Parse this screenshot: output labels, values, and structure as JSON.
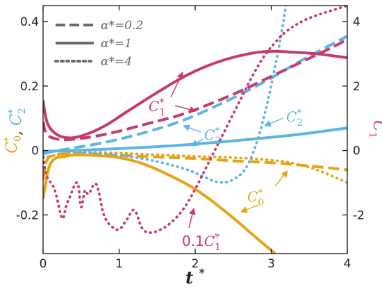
{
  "colors": {
    "orange": "#E8A317",
    "blue": "#5BB5E5",
    "pink": "#C8396E",
    "legend_gray": "#6a6a6a",
    "axis": "#000000"
  },
  "chart_data": {
    "type": "line",
    "xlabel": "t*",
    "ylabel_left_parts": [
      "C",
      "0",
      "*",
      ", ",
      "C",
      "2",
      "*"
    ],
    "ylabel_right": "C1*",
    "xlim": [
      0,
      4
    ],
    "ylim_left": [
      -0.32,
      0.45
    ],
    "ylim_right": [
      -3.2,
      4.5
    ],
    "x_ticks": [
      0,
      1,
      2,
      3,
      4
    ],
    "x_tick_labels": [
      "0",
      "1",
      "2",
      "3",
      "4"
    ],
    "y_left_ticks": [
      -0.2,
      0,
      0.2,
      0.4
    ],
    "y_left_tick_labels": [
      "-0.2",
      "0",
      "0.2",
      "0.4"
    ],
    "y_right_ticks": [
      -2,
      0,
      2,
      4
    ],
    "y_right_tick_labels": [
      "-2",
      "0",
      "2",
      "4"
    ],
    "grid": false,
    "legend": {
      "placement": "top-left",
      "entries": [
        {
          "label": "α*=0.2",
          "style": "dashed"
        },
        {
          "label": "α*=1",
          "style": "solid"
        },
        {
          "label": "α*=4",
          "style": "dotted"
        }
      ]
    },
    "series": [
      {
        "quantity": "C0*",
        "alpha": "1",
        "style": "solid",
        "color": "orange",
        "axis": "left",
        "x": [
          0,
          0.1,
          0.3,
          0.5,
          0.8,
          1.0,
          1.3,
          1.6,
          2.0,
          2.4,
          2.8,
          3.05
        ],
        "y": [
          -0.15,
          -0.04,
          -0.018,
          -0.014,
          -0.017,
          -0.022,
          -0.04,
          -0.07,
          -0.12,
          -0.19,
          -0.27,
          -0.32
        ]
      },
      {
        "quantity": "C0*",
        "alpha": "0.2",
        "style": "dashed",
        "color": "orange",
        "axis": "left",
        "x": [
          0,
          0.05,
          0.15,
          0.3,
          0.6,
          1.0,
          1.5,
          2.0,
          2.5,
          3.0,
          3.5,
          4.0
        ],
        "y": [
          -0.09,
          -0.03,
          -0.015,
          -0.01,
          -0.01,
          -0.015,
          -0.02,
          -0.025,
          -0.032,
          -0.038,
          -0.048,
          -0.06
        ]
      },
      {
        "quantity": "C0*",
        "alpha": "4",
        "style": "dotted",
        "color": "orange",
        "axis": "left",
        "x": [
          0,
          0.15,
          0.3,
          0.6,
          1.0,
          1.5,
          2.0,
          2.5,
          3.0,
          3.3,
          3.6,
          4.0
        ],
        "y": [
          -0.02,
          -0.015,
          -0.008,
          -0.005,
          -0.008,
          -0.013,
          -0.018,
          -0.022,
          -0.03,
          -0.04,
          -0.06,
          -0.1
        ]
      },
      {
        "quantity": "C2*",
        "alpha": "1",
        "style": "solid",
        "color": "blue",
        "axis": "left",
        "x": [
          0,
          0.1,
          0.3,
          0.6,
          1.0,
          1.5,
          2.0,
          2.5,
          3.0,
          3.5,
          4.0
        ],
        "y": [
          -0.005,
          -0.002,
          -0.001,
          0.002,
          0.006,
          0.012,
          0.02,
          0.03,
          0.041,
          0.054,
          0.07
        ]
      },
      {
        "quantity": "C2*",
        "alpha": "0.2",
        "style": "dashed",
        "color": "blue",
        "axis": "left",
        "x": [
          0,
          0.2,
          0.4,
          0.7,
          1.0,
          1.4,
          1.8,
          2.2,
          2.6,
          3.0,
          3.4,
          3.8,
          4.0
        ],
        "y": [
          -0.01,
          0.0,
          0.008,
          0.02,
          0.035,
          0.06,
          0.09,
          0.13,
          0.175,
          0.225,
          0.28,
          0.33,
          0.355
        ]
      },
      {
        "quantity": "C2*",
        "alpha": "4",
        "style": "dotted",
        "color": "blue",
        "axis": "left",
        "x": [
          0,
          0.2,
          0.4,
          0.7,
          1.0,
          1.3,
          1.6,
          1.9,
          2.1,
          2.3,
          2.5,
          2.7,
          2.9,
          3.1,
          3.2
        ],
        "y": [
          0.0,
          -0.002,
          -0.004,
          -0.008,
          -0.015,
          -0.025,
          -0.04,
          -0.06,
          -0.08,
          -0.098,
          -0.09,
          -0.04,
          0.1,
          0.32,
          0.46
        ]
      },
      {
        "quantity": "C1*",
        "alpha": "1",
        "style": "solid",
        "color": "pink",
        "axis": "right",
        "x": [
          0,
          0.05,
          0.15,
          0.3,
          0.5,
          0.8,
          1.1,
          1.5,
          1.9,
          2.3,
          2.7,
          3.0,
          3.3,
          3.6,
          4.0
        ],
        "y": [
          1.55,
          0.9,
          0.55,
          0.4,
          0.45,
          0.75,
          1.2,
          1.8,
          2.35,
          2.75,
          3.0,
          3.08,
          3.05,
          3.0,
          2.88
        ]
      },
      {
        "quantity": "C1*",
        "alpha": "0.2",
        "style": "dashed",
        "color": "pink",
        "axis": "right",
        "x": [
          0,
          0.05,
          0.2,
          0.4,
          0.7,
          1.0,
          1.4,
          1.8,
          2.2,
          2.6,
          3.0,
          3.4,
          3.8,
          4.0
        ],
        "y": [
          0.9,
          0.5,
          0.35,
          0.35,
          0.45,
          0.6,
          0.85,
          1.1,
          1.45,
          1.85,
          2.3,
          2.75,
          3.2,
          3.45
        ]
      },
      {
        "quantity": "0.1·C1*",
        "alpha": "4",
        "style": "dotted",
        "color": "pink",
        "axis": "right",
        "x": [
          0,
          0.05,
          0.15,
          0.25,
          0.3,
          0.35,
          0.45,
          0.5,
          0.55,
          0.6,
          0.7,
          0.8,
          0.9,
          1.0,
          1.1,
          1.2,
          1.3,
          1.4,
          1.55,
          1.7,
          1.85,
          2.0,
          2.15,
          2.3,
          2.45,
          2.6,
          2.75,
          2.9,
          3.05,
          3.2,
          3.4,
          3.6,
          3.8,
          4.0
        ],
        "y": [
          -0.2,
          -0.8,
          -1.2,
          -2.1,
          -1.75,
          -1.45,
          -1.0,
          -1.75,
          -1.25,
          -1.35,
          -1.05,
          -2.0,
          -2.35,
          -2.45,
          -2.15,
          -1.85,
          -2.4,
          -2.55,
          -2.45,
          -2.2,
          -1.8,
          -1.2,
          -0.5,
          0.2,
          0.9,
          1.6,
          2.3,
          2.9,
          3.35,
          3.7,
          4.0,
          4.2,
          4.35,
          4.5
        ]
      }
    ],
    "annotations": [
      {
        "parts": [
          "C",
          "1",
          "*"
        ],
        "color": "pink"
      },
      {
        "parts": [
          "C",
          "2",
          "*"
        ],
        "color": "blue"
      },
      {
        "parts": [
          "C",
          "2",
          "*"
        ],
        "color": "blue"
      },
      {
        "parts": [
          "C",
          "0",
          "*"
        ],
        "color": "orange"
      },
      {
        "parts": [
          "0.1",
          "C",
          "1",
          "*"
        ],
        "color": "pink"
      }
    ]
  }
}
